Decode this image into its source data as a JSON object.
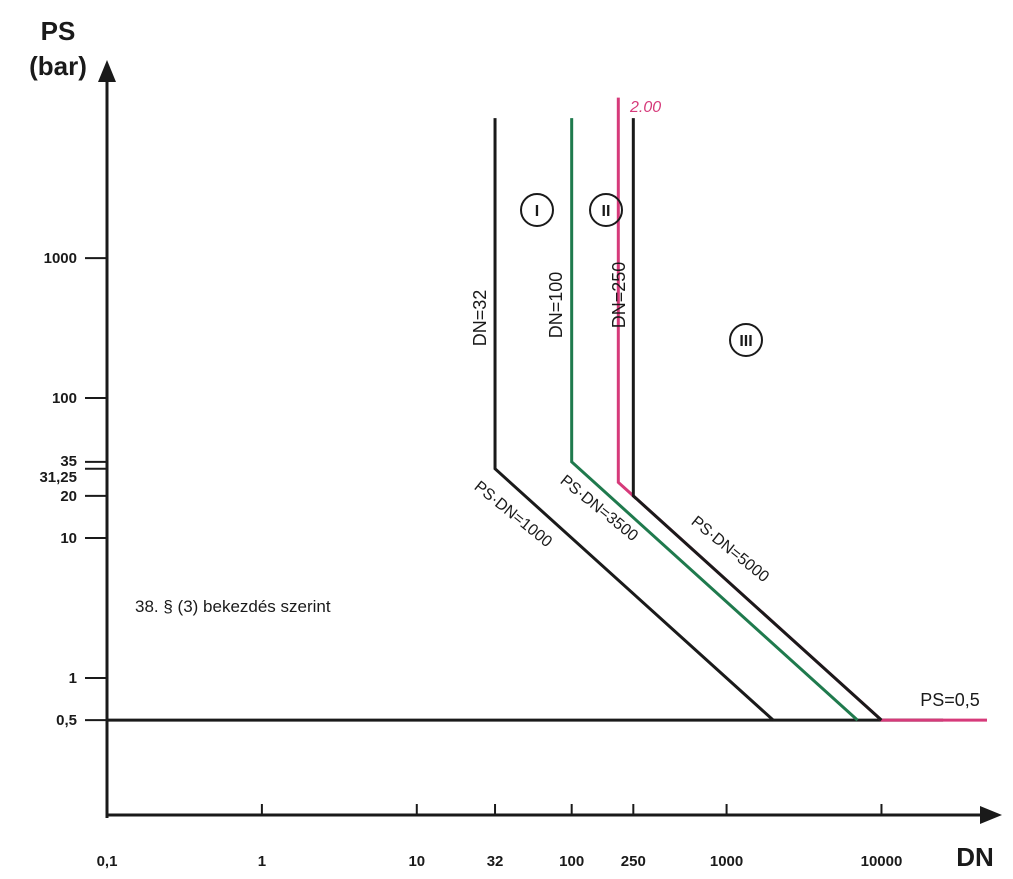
{
  "chart_data": {
    "type": "line",
    "y_label": [
      "PS",
      "(bar)"
    ],
    "x_label": "DN",
    "log_x": true,
    "log_y": true,
    "xlim": [
      0.1,
      60000
    ],
    "ylim": [
      0.1,
      26000
    ],
    "xticks": [
      {
        "value": 0.1,
        "label": "0,1"
      },
      1,
      10,
      32,
      100,
      250,
      1000,
      10000
    ],
    "yticks": [
      {
        "value": 0.5,
        "label": "0,5"
      },
      1,
      10,
      20,
      {
        "value": 31.25,
        "label": "31,25"
      },
      35,
      100,
      1000
    ],
    "series": [
      {
        "name": "PS=0,5",
        "color": "#1a1a1a",
        "x": [
          0.1,
          25000
        ],
        "values": [
          0.5,
          0.5
        ]
      },
      {
        "name": "DN=32",
        "color": "#1a1a1a",
        "x": [
          32,
          32,
          2000
        ],
        "values": [
          10000,
          31.25,
          0.5
        ]
      },
      {
        "name": "DN=100",
        "color": "#1f7a4d",
        "x": [
          100,
          100,
          7000
        ],
        "values": [
          10000,
          35,
          0.5
        ]
      },
      {
        "name": "2.00",
        "color": "#d63a7a",
        "x": [
          200,
          200,
          10000,
          48000
        ],
        "values": [
          14000,
          25,
          0.5,
          0.5
        ]
      },
      {
        "name": "DN=250",
        "color": "#1a1a1a",
        "x": [
          250,
          250,
          10000
        ],
        "values": [
          10000,
          20,
          0.5
        ]
      }
    ],
    "annotations": [
      "PS·DN=1000",
      "PS·DN=3500",
      "PS·DN=5000",
      "I",
      "II",
      "III",
      "38. § (3) bekezdés szerint"
    ]
  }
}
